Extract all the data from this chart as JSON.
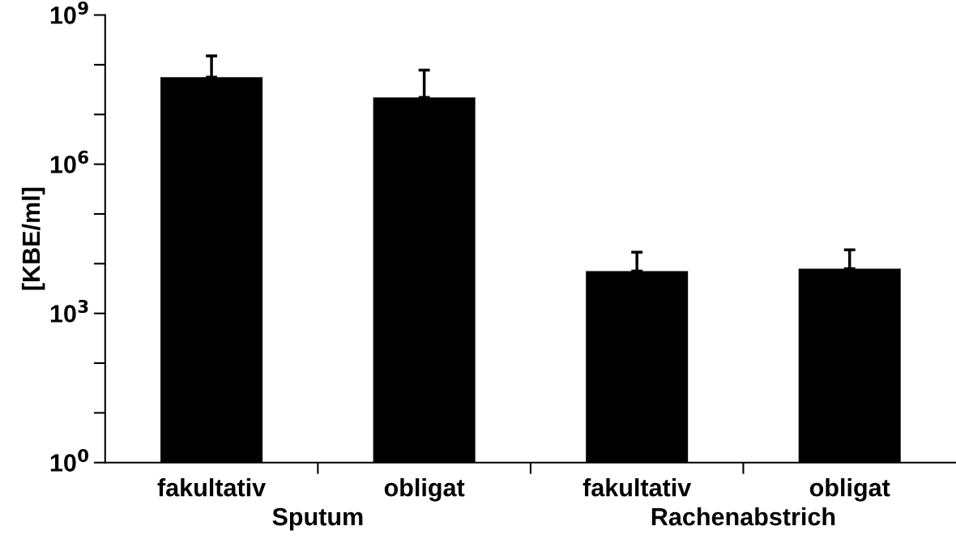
{
  "chart_data": {
    "type": "bar",
    "ylabel": "[KBE/ml]",
    "categories": [
      "fakultativ",
      "obligat",
      "fakultativ",
      "obligat"
    ],
    "values": [
      56000000,
      22000000,
      7100,
      7900
    ],
    "errors": [
      [
        56000000,
        150000000
      ],
      [
        22000000,
        78000000
      ],
      [
        7100,
        17000
      ],
      [
        7900,
        19000
      ]
    ],
    "color": "#000000",
    "log": "y",
    "ylim": [
      1,
      1000000000
    ],
    "yticks": [
      {
        "value": 1,
        "label": "10$^{0}$"
      },
      {
        "value": 10,
        "label": null
      },
      {
        "value": 100,
        "label": null
      },
      {
        "value": 1000,
        "label": "10$^{3}$"
      },
      {
        "value": 10000,
        "label": null
      },
      {
        "value": 100000,
        "label": null
      },
      {
        "value": 1000000,
        "label": "10$^{6}$"
      },
      {
        "value": 10000000,
        "label": null
      },
      {
        "value": 100000000,
        "label": null
      },
      {
        "value": 1000000000,
        "label": "10$^{9}$"
      }
    ],
    "annotations": [
      "Sputum",
      "Rachenabstrich"
    ],
    "grid": false
  }
}
